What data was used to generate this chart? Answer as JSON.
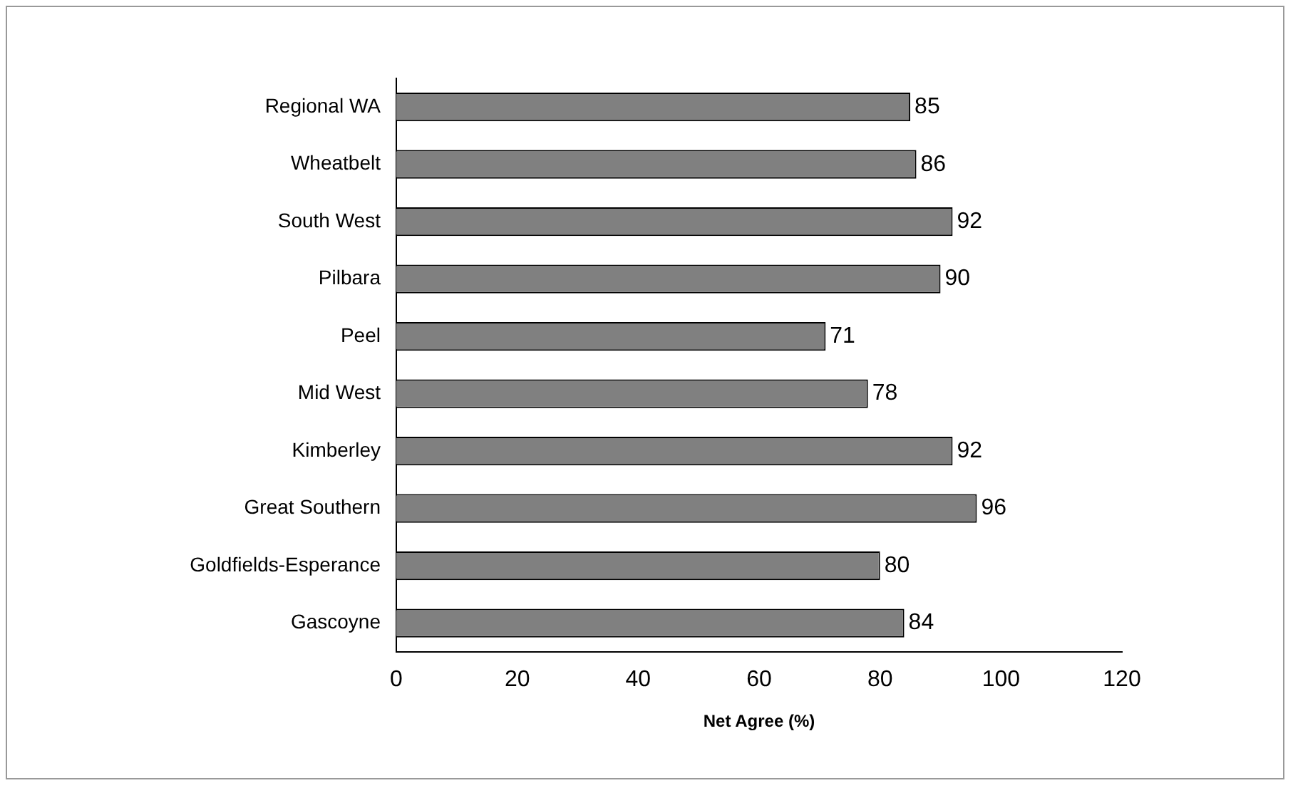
{
  "chart_data": {
    "type": "bar",
    "orientation": "horizontal",
    "xlabel": "Net Agree (%)",
    "categories": [
      "Regional WA",
      "Wheatbelt",
      "South West",
      "Pilbara",
      "Peel",
      "Mid West",
      "Kimberley",
      "Great Southern",
      "Goldfields-Esperance",
      "Gascoyne"
    ],
    "values": [
      85,
      86,
      92,
      90,
      71,
      78,
      92,
      96,
      80,
      84
    ],
    "color": "#808080",
    "xlim": [
      0,
      120
    ],
    "xticks": [
      0,
      20,
      40,
      60,
      80,
      100,
      120
    ],
    "grid": false,
    "legend": false,
    "data_labels": true
  }
}
